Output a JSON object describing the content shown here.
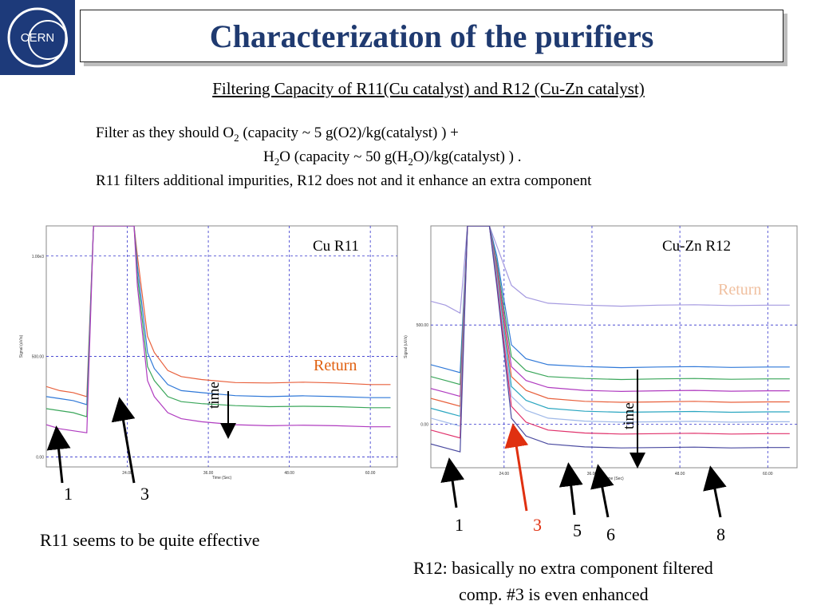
{
  "slide": {
    "title": "Characterization of the purifiers",
    "subtitle": "Filtering Capacity of R11(Cu catalyst) and R12 (Cu-Zn catalyst)",
    "line1_a": "Filter as they should O",
    "line1_sub": "2",
    "line1_b": " (capacity ~ 5 g(O2)/kg(catalyst) ) +",
    "line2_a": "H",
    "line2_sub1": "2",
    "line2_b": "O (capacity ~ 50 g(H",
    "line2_sub2": "2",
    "line2_c": "O)/kg(catalyst) ) .",
    "line3": "R11 filters additional impurities, R12 does not and it enhance an extra component",
    "logo_text": "CERN",
    "left_caption": "R11 seems to be quite effective",
    "right_caption_1": "R12: basically no extra component filtered",
    "right_caption_2": "comp. #3 is even enhanced"
  },
  "colors": {
    "title": "#1f3a70",
    "return": "#e06010",
    "red_arrow": "#e03010",
    "grid": "#3333cc"
  },
  "chart_data": [
    {
      "type": "line",
      "title": "Cu R11",
      "xlabel": "Time (Sec)",
      "ylabel": "Signal (uV/s)",
      "x_ticks": [
        "24.00",
        "36.00",
        "48.00",
        "60.00"
      ],
      "y_ticks": [
        "0.00",
        "500.00",
        "1.00e3"
      ],
      "xlim": [
        12,
        64
      ],
      "ylim": [
        -50,
        1150
      ],
      "grid": true,
      "annotations": {
        "return": "Return",
        "time": "time",
        "peak_a": "1",
        "peak_b": "3"
      },
      "series": [
        {
          "color": "#e8603c",
          "values": [
            [
              12,
              350
            ],
            [
              14,
              330
            ],
            [
              16,
              320
            ],
            [
              18,
              300
            ],
            [
              19,
              1150
            ],
            [
              25,
              1150
            ],
            [
              25.5,
              1000
            ],
            [
              27,
              600
            ],
            [
              28,
              520
            ],
            [
              30,
              430
            ],
            [
              32,
              400
            ],
            [
              35,
              385
            ],
            [
              40,
              370
            ],
            [
              45,
              368
            ],
            [
              50,
              372
            ],
            [
              55,
              368
            ],
            [
              60,
              360
            ],
            [
              63,
              360
            ]
          ]
        },
        {
          "color": "#2f78d8",
          "values": [
            [
              12,
              300
            ],
            [
              14,
              290
            ],
            [
              16,
              280
            ],
            [
              18,
              260
            ],
            [
              19,
              1150
            ],
            [
              25,
              1150
            ],
            [
              25.5,
              950
            ],
            [
              27,
              520
            ],
            [
              28,
              440
            ],
            [
              30,
              360
            ],
            [
              32,
              330
            ],
            [
              35,
              320
            ],
            [
              40,
              305
            ],
            [
              45,
              300
            ],
            [
              50,
              304
            ],
            [
              55,
              300
            ],
            [
              60,
              295
            ],
            [
              63,
              295
            ]
          ]
        },
        {
          "color": "#3aa65a",
          "values": [
            [
              12,
              240
            ],
            [
              14,
              230
            ],
            [
              16,
              220
            ],
            [
              18,
              200
            ],
            [
              19,
              1150
            ],
            [
              25,
              1150
            ],
            [
              25.5,
              900
            ],
            [
              27,
              450
            ],
            [
              28,
              380
            ],
            [
              30,
              300
            ],
            [
              32,
              275
            ],
            [
              35,
              265
            ],
            [
              40,
              255
            ],
            [
              45,
              250
            ],
            [
              50,
              252
            ],
            [
              55,
              250
            ],
            [
              60,
              245
            ],
            [
              63,
              245
            ]
          ]
        },
        {
          "color": "#b03cc0",
          "values": [
            [
              12,
              160
            ],
            [
              14,
              140
            ],
            [
              16,
              130
            ],
            [
              18,
              120
            ],
            [
              19,
              1150
            ],
            [
              25,
              1150
            ],
            [
              25.5,
              850
            ],
            [
              27,
              380
            ],
            [
              28,
              300
            ],
            [
              30,
              220
            ],
            [
              32,
              190
            ],
            [
              35,
              175
            ],
            [
              40,
              160
            ],
            [
              45,
              155
            ],
            [
              50,
              158
            ],
            [
              55,
              155
            ],
            [
              60,
              150
            ],
            [
              63,
              150
            ]
          ]
        }
      ]
    },
    {
      "type": "line",
      "title": "Cu-Zn R12",
      "xlabel": "Time (Sec)",
      "ylabel": "Signal (uV/s)",
      "x_ticks": [
        "24.00",
        "36.00",
        "48.00",
        "60.00"
      ],
      "y_ticks": [
        "0.00",
        "500.00"
      ],
      "xlim": [
        14,
        64
      ],
      "ylim": [
        -220,
        1000
      ],
      "grid": true,
      "annotations": {
        "return": "Return",
        "time": "time",
        "peak_a": "1",
        "peak_b": "3",
        "peak_c": "5",
        "peak_d": "6",
        "peak_e": "8"
      },
      "series": [
        {
          "color": "#a59ae0",
          "values": [
            [
              14,
              620
            ],
            [
              16,
              600
            ],
            [
              18,
              560
            ],
            [
              19,
              1000
            ],
            [
              22,
              1000
            ],
            [
              23,
              900
            ],
            [
              25,
              700
            ],
            [
              27,
              640
            ],
            [
              30,
              610
            ],
            [
              35,
              600
            ],
            [
              40,
              595
            ],
            [
              45,
              600
            ],
            [
              50,
              602
            ],
            [
              55,
              598
            ],
            [
              60,
              600
            ],
            [
              63,
              600
            ]
          ]
        },
        {
          "color": "#2f78d8",
          "values": [
            [
              14,
              300
            ],
            [
              16,
              280
            ],
            [
              18,
              260
            ],
            [
              19,
              1000
            ],
            [
              22,
              1000
            ],
            [
              23,
              850
            ],
            [
              25,
              400
            ],
            [
              27,
              330
            ],
            [
              30,
              300
            ],
            [
              35,
              290
            ],
            [
              40,
              285
            ],
            [
              45,
              288
            ],
            [
              50,
              290
            ],
            [
              55,
              286
            ],
            [
              60,
              288
            ],
            [
              63,
              288
            ]
          ]
        },
        {
          "color": "#3aa65a",
          "values": [
            [
              14,
              240
            ],
            [
              16,
              220
            ],
            [
              18,
              200
            ],
            [
              19,
              1000
            ],
            [
              22,
              1000
            ],
            [
              23,
              820
            ],
            [
              25,
              340
            ],
            [
              27,
              270
            ],
            [
              30,
              240
            ],
            [
              35,
              230
            ],
            [
              40,
              225
            ],
            [
              45,
              228
            ],
            [
              50,
              230
            ],
            [
              55,
              226
            ],
            [
              60,
              228
            ],
            [
              63,
              228
            ]
          ]
        },
        {
          "color": "#b03cc0",
          "values": [
            [
              14,
              180
            ],
            [
              16,
              160
            ],
            [
              18,
              140
            ],
            [
              19,
              1000
            ],
            [
              22,
              1000
            ],
            [
              23,
              800
            ],
            [
              25,
              290
            ],
            [
              27,
              220
            ],
            [
              30,
              185
            ],
            [
              35,
              170
            ],
            [
              40,
              165
            ],
            [
              45,
              168
            ],
            [
              50,
              170
            ],
            [
              55,
              166
            ],
            [
              60,
              168
            ],
            [
              63,
              168
            ]
          ]
        },
        {
          "color": "#e8603c",
          "values": [
            [
              14,
              130
            ],
            [
              16,
              110
            ],
            [
              18,
              90
            ],
            [
              19,
              1000
            ],
            [
              22,
              1000
            ],
            [
              23,
              780
            ],
            [
              25,
              240
            ],
            [
              27,
              170
            ],
            [
              30,
              130
            ],
            [
              35,
              115
            ],
            [
              40,
              110
            ],
            [
              45,
              112
            ],
            [
              50,
              115
            ],
            [
              55,
              110
            ],
            [
              60,
              112
            ],
            [
              63,
              112
            ]
          ]
        },
        {
          "color": "#2aa6c0",
          "values": [
            [
              14,
              80
            ],
            [
              16,
              60
            ],
            [
              18,
              40
            ],
            [
              19,
              1000
            ],
            [
              22,
              1000
            ],
            [
              23,
              760
            ],
            [
              25,
              190
            ],
            [
              27,
              120
            ],
            [
              30,
              80
            ],
            [
              35,
              65
            ],
            [
              40,
              60
            ],
            [
              45,
              62
            ],
            [
              50,
              64
            ],
            [
              55,
              60
            ],
            [
              60,
              62
            ],
            [
              63,
              62
            ]
          ]
        },
        {
          "color": "#9fb8e8",
          "values": [
            [
              14,
              30
            ],
            [
              16,
              10
            ],
            [
              18,
              -10
            ],
            [
              19,
              1000
            ],
            [
              22,
              1000
            ],
            [
              23,
              740
            ],
            [
              25,
              140
            ],
            [
              27,
              70
            ],
            [
              30,
              30
            ],
            [
              35,
              15
            ],
            [
              40,
              10
            ],
            [
              45,
              12
            ],
            [
              50,
              14
            ],
            [
              55,
              10
            ],
            [
              60,
              12
            ],
            [
              63,
              12
            ]
          ]
        },
        {
          "color": "#e0306a",
          "values": [
            [
              14,
              -30
            ],
            [
              16,
              -50
            ],
            [
              18,
              -70
            ],
            [
              19,
              1000
            ],
            [
              22,
              1000
            ],
            [
              23,
              720
            ],
            [
              25,
              90
            ],
            [
              27,
              10
            ],
            [
              30,
              -30
            ],
            [
              35,
              -45
            ],
            [
              40,
              -50
            ],
            [
              45,
              -48
            ],
            [
              50,
              -46
            ],
            [
              55,
              -50
            ],
            [
              60,
              -48
            ],
            [
              63,
              -48
            ]
          ]
        },
        {
          "color": "#4a4aa0",
          "values": [
            [
              14,
              -100
            ],
            [
              16,
              -120
            ],
            [
              18,
              -140
            ],
            [
              19,
              1000
            ],
            [
              22,
              1000
            ],
            [
              23,
              700
            ],
            [
              25,
              30
            ],
            [
              27,
              -60
            ],
            [
              30,
              -100
            ],
            [
              35,
              -115
            ],
            [
              40,
              -120
            ],
            [
              45,
              -118
            ],
            [
              50,
              -116
            ],
            [
              55,
              -120
            ],
            [
              60,
              -118
            ],
            [
              63,
              -118
            ]
          ]
        }
      ]
    }
  ]
}
